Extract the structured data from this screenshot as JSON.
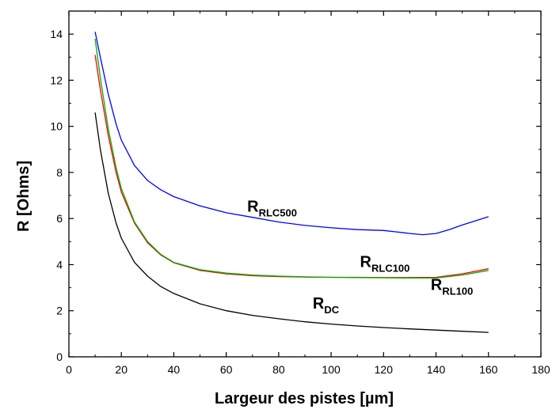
{
  "chart_data": {
    "type": "line",
    "xlabel": "Largeur des pistes [µm]",
    "ylabel": "R [Ohms]",
    "xlim": [
      0,
      180
    ],
    "ylim": [
      0,
      15
    ],
    "x_ticks": [
      0,
      20,
      40,
      60,
      80,
      100,
      120,
      140,
      160,
      180
    ],
    "y_ticks": [
      0,
      2,
      4,
      6,
      8,
      10,
      12,
      14
    ],
    "grid": false,
    "legend": "none",
    "series": [
      {
        "key": "rlc500",
        "label_main": "R",
        "label_sub": "RLC500",
        "color": "#0000ff",
        "x": [
          10,
          12,
          15,
          18,
          20,
          25,
          30,
          35,
          40,
          50,
          60,
          70,
          80,
          90,
          100,
          110,
          120,
          125,
          130,
          135,
          140,
          145,
          150,
          155,
          160
        ],
        "y": [
          14.1,
          13.0,
          11.4,
          10.1,
          9.4,
          8.3,
          7.65,
          7.25,
          6.95,
          6.55,
          6.25,
          6.05,
          5.85,
          5.7,
          5.6,
          5.52,
          5.48,
          5.42,
          5.35,
          5.3,
          5.35,
          5.52,
          5.72,
          5.9,
          6.08
        ]
      },
      {
        "key": "rlc100",
        "label_main": "R",
        "label_sub": "RLC100",
        "color": "#00b000",
        "x": [
          10,
          12,
          15,
          18,
          20,
          25,
          30,
          35,
          40,
          50,
          60,
          70,
          80,
          90,
          100,
          110,
          120,
          130,
          140,
          150,
          160
        ],
        "y": [
          13.8,
          12.1,
          9.9,
          8.2,
          7.3,
          5.85,
          5.0,
          4.45,
          4.1,
          3.78,
          3.63,
          3.55,
          3.5,
          3.47,
          3.45,
          3.44,
          3.43,
          3.42,
          3.42,
          3.55,
          3.75
        ]
      },
      {
        "key": "rl100",
        "label_main": "R",
        "label_sub": "RL100",
        "color": "#ff0000",
        "x": [
          10,
          12,
          15,
          18,
          20,
          25,
          30,
          35,
          40,
          50,
          60,
          70,
          80,
          90,
          100,
          110,
          120,
          130,
          140,
          150,
          160
        ],
        "y": [
          13.1,
          11.6,
          9.6,
          8.0,
          7.15,
          5.8,
          4.95,
          4.42,
          4.08,
          3.75,
          3.6,
          3.52,
          3.48,
          3.46,
          3.45,
          3.45,
          3.44,
          3.44,
          3.45,
          3.6,
          3.82
        ]
      },
      {
        "key": "dc",
        "label_main": "R",
        "label_sub": "DC",
        "color": "#000000",
        "x": [
          10,
          12,
          15,
          18,
          20,
          25,
          30,
          35,
          40,
          50,
          60,
          70,
          80,
          90,
          100,
          110,
          120,
          130,
          140,
          150,
          160
        ],
        "y": [
          10.6,
          9.0,
          7.1,
          5.8,
          5.15,
          4.1,
          3.5,
          3.05,
          2.75,
          2.3,
          2.0,
          1.8,
          1.65,
          1.52,
          1.42,
          1.34,
          1.27,
          1.21,
          1.16,
          1.11,
          1.06
        ]
      }
    ]
  }
}
